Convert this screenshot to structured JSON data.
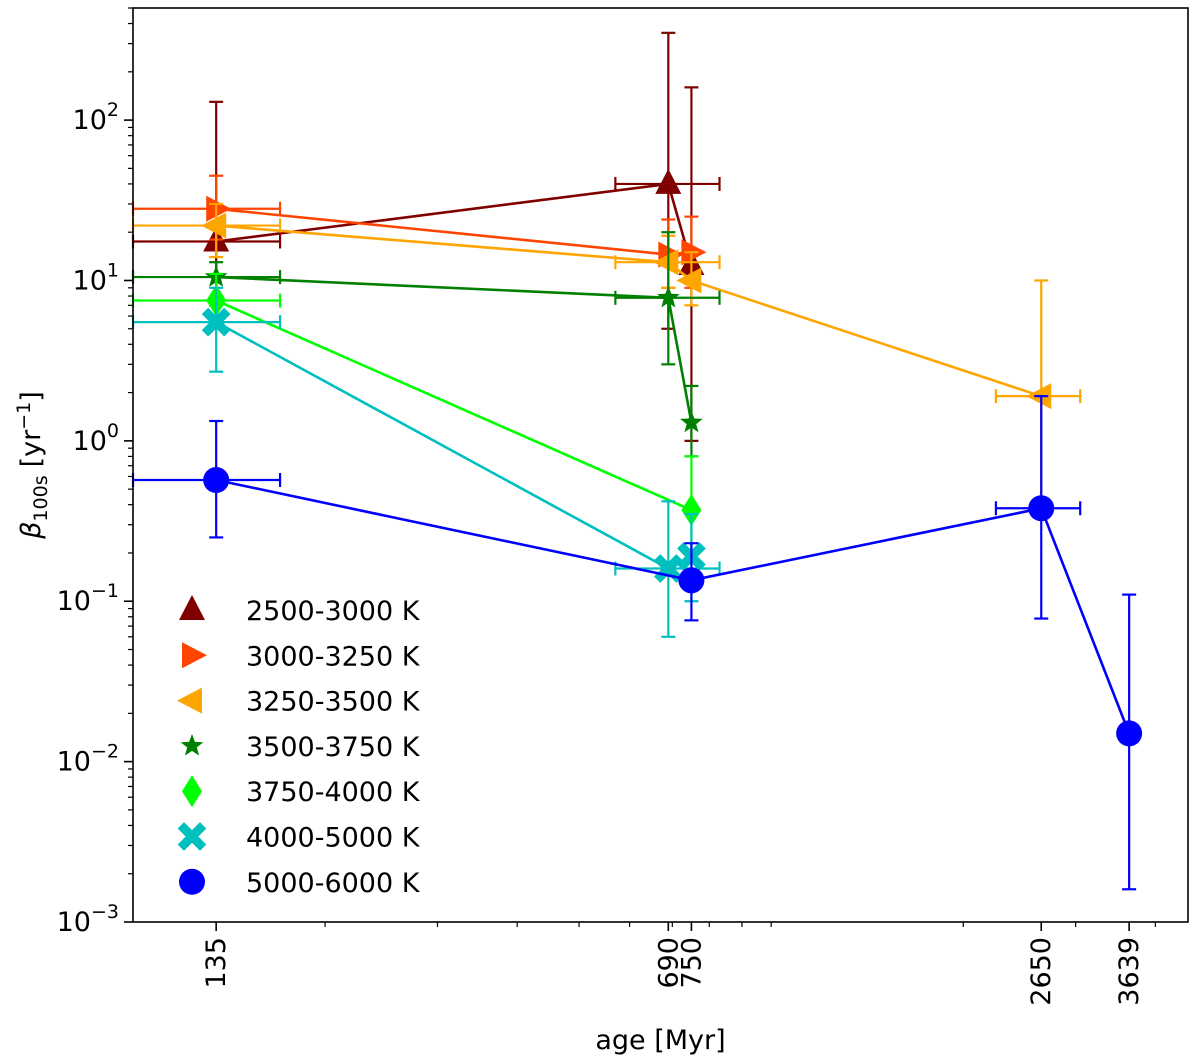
{
  "chart_data": {
    "type": "scatter",
    "title": "",
    "xlabel": "age [Myr]",
    "ylabel_symbol": "β",
    "ylabel_subscript": "100s",
    "ylabel_unit": "[yr",
    "ylabel_unit_exp": "−1",
    "ylabel_unit_close": "]",
    "xscale": "log",
    "yscale": "log",
    "xlim": [
      100,
      4500
    ],
    "ylim": [
      0.001,
      500
    ],
    "x_ticks": [
      135,
      690,
      750,
      2650,
      3639
    ],
    "x_tick_labels": [
      "135",
      "690",
      "750",
      "2650",
      "3639"
    ],
    "y_ticks": [
      {
        "base": "10",
        "exp": "−3",
        "value": 0.001
      },
      {
        "base": "10",
        "exp": "−2",
        "value": 0.01
      },
      {
        "base": "10",
        "exp": "−1",
        "value": 0.1
      },
      {
        "base": "10",
        "exp": "0",
        "value": 1
      },
      {
        "base": "10",
        "exp": "1",
        "value": 10
      },
      {
        "base": "10",
        "exp": "2",
        "value": 100
      }
    ],
    "legend_position": "lower-left",
    "series": [
      {
        "name": "2500-3000 K",
        "color": "#800000",
        "marker": "triangle-up",
        "points": [
          {
            "x": 135,
            "y": 17.5,
            "ylo": 6,
            "yhi": 130,
            "xlo": 100,
            "xhi": 170
          },
          {
            "x": 690,
            "y": 40,
            "ylo": 5,
            "yhi": 350,
            "xlo": 570,
            "xhi": 830
          },
          {
            "x": 750,
            "y": 12.5,
            "ylo": 1.0,
            "yhi": 160
          }
        ]
      },
      {
        "name": "3000-3250 K",
        "color": "#ff4500",
        "marker": "triangle-right",
        "points": [
          {
            "x": 135,
            "y": 28,
            "ylo": 18,
            "yhi": 45,
            "xlo": 100,
            "xhi": 170
          },
          {
            "x": 690,
            "y": 14.5,
            "ylo": 9,
            "yhi": 24
          },
          {
            "x": 750,
            "y": 15,
            "ylo": 9,
            "yhi": 25
          }
        ]
      },
      {
        "name": "3250-3500 K",
        "color": "#ffa500",
        "marker": "triangle-left",
        "points": [
          {
            "x": 135,
            "y": 22,
            "ylo": 14,
            "yhi": 30,
            "xlo": 100,
            "xhi": 170
          },
          {
            "x": 690,
            "y": 13,
            "ylo": 9,
            "yhi": 19,
            "xlo": 570,
            "xhi": 830
          },
          {
            "x": 750,
            "y": 10,
            "ylo": 7,
            "yhi": 15
          },
          {
            "x": 2650,
            "y": 1.9,
            "ylo": 0.4,
            "yhi": 10,
            "xlo": 2250,
            "xhi": 3050
          }
        ]
      },
      {
        "name": "3500-3750 K",
        "color": "#008000",
        "marker": "star",
        "points": [
          {
            "x": 135,
            "y": 10.5,
            "ylo": 7,
            "yhi": 13,
            "xlo": 100,
            "xhi": 170
          },
          {
            "x": 690,
            "y": 7.8,
            "ylo": 3,
            "yhi": 20,
            "xlo": 570,
            "xhi": 830
          },
          {
            "x": 750,
            "y": 1.3,
            "ylo": 0.8,
            "yhi": 2.2
          }
        ]
      },
      {
        "name": "3750-4000 K",
        "color": "#00ff00",
        "marker": "diamond",
        "points": [
          {
            "x": 135,
            "y": 7.5,
            "ylo": 5,
            "yhi": 11,
            "xlo": 100,
            "xhi": 170
          },
          {
            "x": 750,
            "y": 0.37,
            "ylo": 0.2,
            "yhi": 0.8
          }
        ]
      },
      {
        "name": "4000-5000 K",
        "color": "#00bfbf",
        "marker": "x",
        "points": [
          {
            "x": 135,
            "y": 5.5,
            "ylo": 2.7,
            "yhi": 9,
            "xlo": 100,
            "xhi": 170
          },
          {
            "x": 690,
            "y": 0.16,
            "ylo": 0.06,
            "yhi": 0.42,
            "xlo": 570,
            "xhi": 830
          },
          {
            "x": 750,
            "y": 0.19,
            "ylo": 0.1,
            "yhi": 0.35
          }
        ]
      },
      {
        "name": "5000-6000 K",
        "color": "#0000ff",
        "marker": "circle",
        "points": [
          {
            "x": 135,
            "y": 0.57,
            "ylo": 0.25,
            "yhi": 1.33,
            "xlo": 100,
            "xhi": 170
          },
          {
            "x": 750,
            "y": 0.135,
            "ylo": 0.076,
            "yhi": 0.23
          },
          {
            "x": 2650,
            "y": 0.38,
            "ylo": 0.078,
            "yhi": 1.9,
            "xlo": 2250,
            "xhi": 3050
          },
          {
            "x": 3639,
            "y": 0.015,
            "ylo": 0.0016,
            "yhi": 0.11
          }
        ]
      }
    ]
  }
}
